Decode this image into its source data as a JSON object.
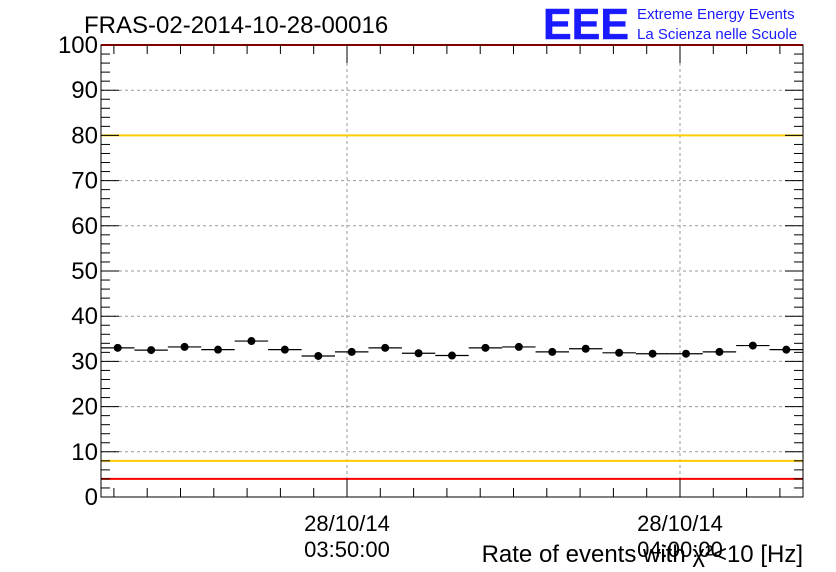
{
  "title": "FRAS-02-2014-10-28-00016",
  "logo": {
    "mark": "EEE",
    "line1": "Extreme Energy Events",
    "line2": "La Scienza nelle Scuole",
    "color": "#1a1aff"
  },
  "chart_data": {
    "type": "scatter",
    "xlabel": "Rate of events with χ²<10 [Hz]",
    "ylim": [
      0,
      100
    ],
    "y_ticks": [
      "0",
      "10",
      "20",
      "30",
      "40",
      "50",
      "60",
      "70",
      "80",
      "90",
      "100"
    ],
    "x_ticks": [
      {
        "date": "28/10/14",
        "time": "03:50:00"
      },
      {
        "date": "28/10/14",
        "time": "04:00:00"
      }
    ],
    "grid": true,
    "thresholds": [
      {
        "value": 100,
        "color": "#ff0000"
      },
      {
        "value": 80,
        "color": "#ffcc00"
      },
      {
        "value": 8,
        "color": "#ffcc00"
      },
      {
        "value": 4,
        "color": "#ff0000"
      }
    ],
    "series": [
      {
        "values": [
          33.0,
          32.5,
          33.2,
          32.6,
          34.5,
          32.6,
          31.2,
          32.1,
          33.0,
          31.8,
          31.3,
          33.0,
          33.2,
          32.1,
          32.8,
          31.9,
          31.7,
          31.7,
          32.1,
          33.5,
          32.6
        ]
      }
    ],
    "colors": {
      "marker": "#000000",
      "grid": "#9a9a9a",
      "axis": "#000000"
    }
  }
}
